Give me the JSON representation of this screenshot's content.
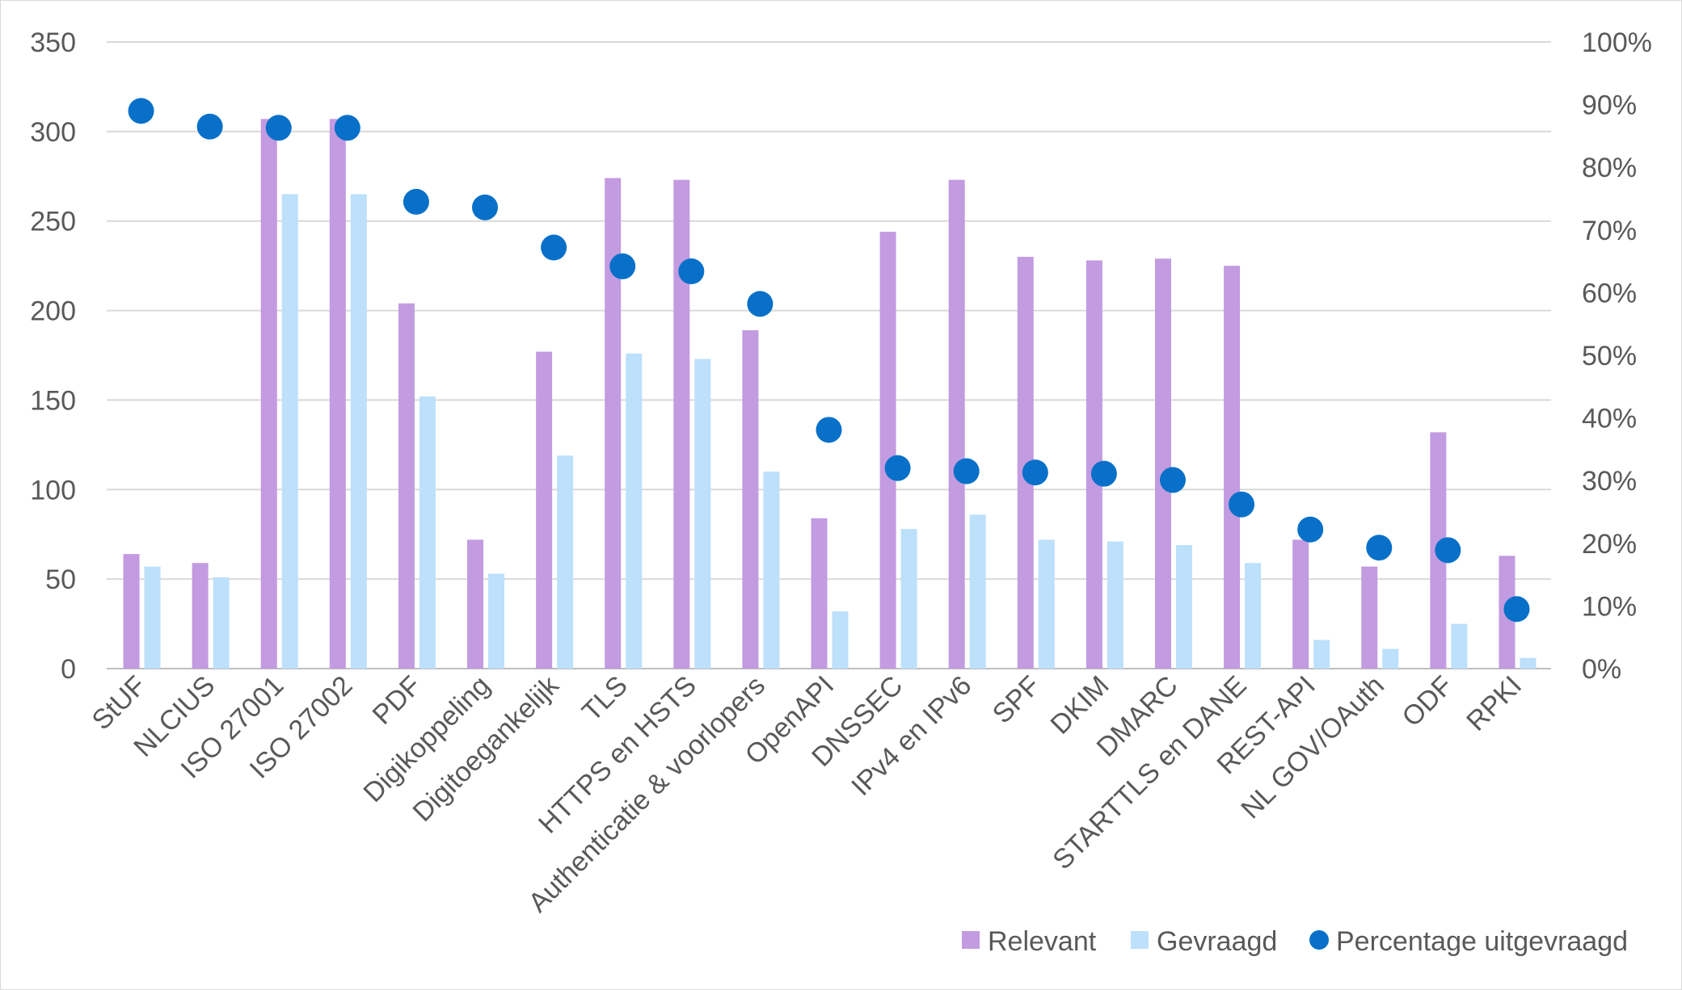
{
  "chart_data": {
    "type": "bar",
    "categories": [
      "StUF",
      "NLCIUS",
      "ISO 27001",
      "ISO 27002",
      "PDF",
      "Digikoppeling",
      "Digitoegankelijk",
      "TLS",
      "HTTPS en HSTS",
      "Authenticatie & voorlopers",
      "OpenAPI",
      "DNSSEC",
      "IPv4 en IPv6",
      "SPF",
      "DKIM",
      "DMARC",
      "STARTTLS en DANE",
      "REST-API",
      "NL GOV/OAuth",
      "ODF",
      "RPKI"
    ],
    "series": [
      {
        "name": "Relevant",
        "type": "bar",
        "axis": "left",
        "color": "#c39be0",
        "values": [
          64,
          59,
          307,
          307,
          204,
          72,
          177,
          274,
          273,
          189,
          84,
          244,
          273,
          230,
          228,
          229,
          225,
          72,
          57,
          132,
          63
        ]
      },
      {
        "name": "Gevraagd",
        "type": "bar",
        "axis": "left",
        "color": "#bde0fb",
        "values": [
          57,
          51,
          265,
          265,
          152,
          53,
          119,
          176,
          173,
          110,
          32,
          78,
          86,
          72,
          71,
          69,
          59,
          16,
          11,
          25,
          6
        ]
      },
      {
        "name": "Percentage uitgevraagd",
        "type": "scatter",
        "axis": "right",
        "color": "#0870c8",
        "values": [
          0.89,
          0.865,
          0.863,
          0.863,
          0.745,
          0.736,
          0.672,
          0.642,
          0.634,
          0.582,
          0.381,
          0.32,
          0.315,
          0.313,
          0.311,
          0.301,
          0.262,
          0.222,
          0.193,
          0.189,
          0.095
        ]
      }
    ],
    "y_left": {
      "min": 0,
      "max": 350,
      "ticks": [
        "0",
        "50",
        "100",
        "150",
        "200",
        "250",
        "300",
        "350"
      ]
    },
    "y_right": {
      "min": 0,
      "max": 1,
      "ticks": [
        "0%",
        "10%",
        "20%",
        "30%",
        "40%",
        "50%",
        "60%",
        "70%",
        "80%",
        "90%",
        "100%"
      ]
    },
    "grid": true,
    "legend_position": "bottom-right",
    "colors": {
      "gridline": "#d9d9d9",
      "axis_line": "#bfbfbf",
      "text": "#595959"
    }
  }
}
